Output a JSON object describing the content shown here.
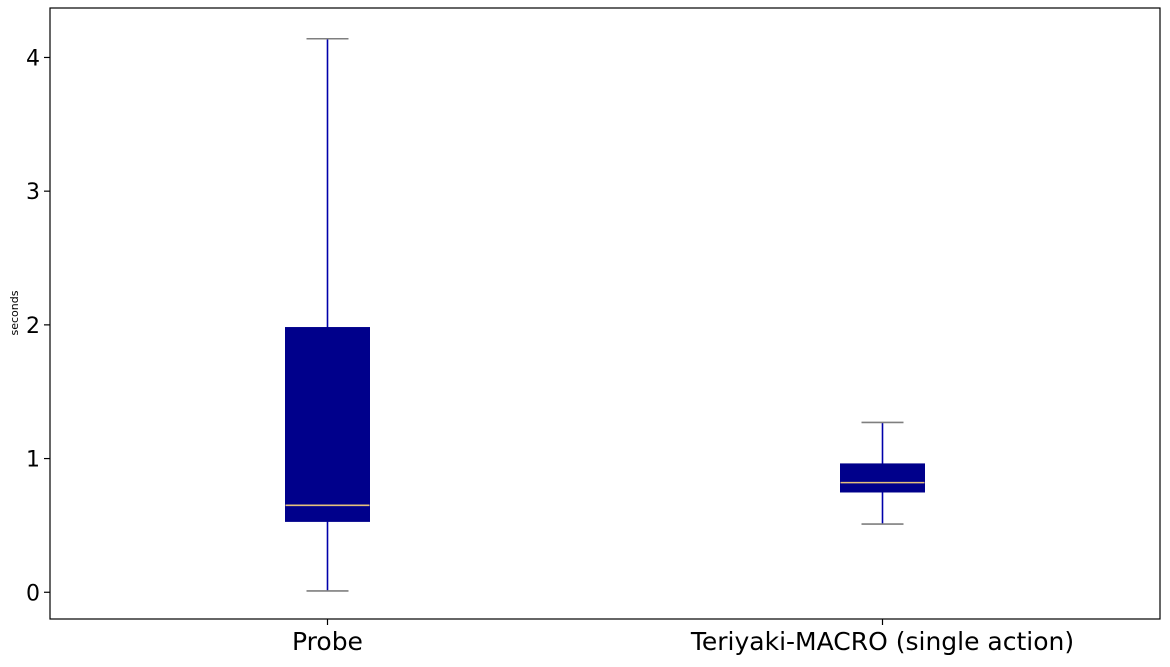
{
  "chart_data": {
    "type": "box",
    "title": "",
    "xlabel": "",
    "ylabel": "seconds",
    "ylim": [
      -0.2,
      4.37
    ],
    "yticks": [
      0,
      1,
      2,
      3,
      4
    ],
    "ytick_labels": [
      "0",
      "1",
      "2",
      "3",
      "4"
    ],
    "grid": false,
    "categories": [
      "Probe",
      "Teriyaki-MACRO (single action)"
    ],
    "boxes": [
      {
        "category": "Probe",
        "whisker_low": 0.01,
        "q1": 0.53,
        "median": 0.65,
        "q3": 1.98,
        "whisker_high": 4.14
      },
      {
        "category": "Teriyaki-MACRO (single action)",
        "whisker_low": 0.51,
        "q1": 0.75,
        "median": 0.82,
        "q3": 0.96,
        "whisker_high": 1.27
      }
    ],
    "colors": {
      "box_fill": "#00008B",
      "whisker": "#0000AA",
      "cap": "#7F7F7F",
      "median": "#E5C07B",
      "axes": "#000000"
    }
  }
}
